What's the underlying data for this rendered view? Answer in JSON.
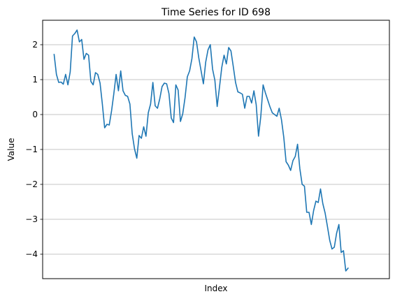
{
  "chart_data": {
    "type": "line",
    "title": "Time Series for ID 698",
    "xlabel": "Index",
    "ylabel": "Value",
    "ylim": [
      -4.7,
      2.7
    ],
    "xlim": [
      -5,
      146
    ],
    "grid": "y",
    "x_ticks_visible": false,
    "yticks": [
      2,
      1,
      0,
      -1,
      -2,
      -3,
      -4
    ],
    "ytick_labels": [
      "2",
      "1",
      "0",
      "−1",
      "−2",
      "−3",
      "−4"
    ],
    "series": [
      {
        "color": "#1f77b4",
        "values": [
          1.72,
          1.15,
          0.92,
          0.93,
          0.87,
          1.15,
          0.85,
          1.22,
          2.25,
          2.32,
          2.42,
          2.08,
          2.15,
          1.58,
          1.75,
          1.7,
          0.95,
          0.85,
          1.2,
          1.15,
          0.9,
          0.3,
          -0.38,
          -0.28,
          -0.3,
          0.1,
          0.6,
          1.15,
          0.68,
          1.25,
          0.68,
          0.55,
          0.52,
          0.3,
          -0.55,
          -0.98,
          -1.25,
          -0.6,
          -0.68,
          -0.35,
          -0.62,
          0.05,
          0.3,
          0.92,
          0.25,
          0.18,
          0.45,
          0.8,
          0.9,
          0.88,
          0.6,
          -0.1,
          -0.23,
          0.85,
          0.7,
          -0.2,
          0.02,
          0.48,
          1.08,
          1.25,
          1.6,
          2.22,
          2.08,
          1.62,
          1.25,
          0.88,
          1.5,
          1.85,
          2.0,
          1.3,
          0.98,
          0.23,
          0.78,
          1.35,
          1.7,
          1.45,
          1.92,
          1.82,
          1.38,
          0.92,
          0.65,
          0.62,
          0.58,
          0.18,
          0.52,
          0.52,
          0.33,
          0.68,
          0.28,
          -0.62,
          -0.05,
          0.85,
          0.62,
          0.42,
          0.22,
          0.05,
          0.0,
          -0.05,
          0.18,
          -0.15,
          -0.65,
          -1.35,
          -1.45,
          -1.6,
          -1.32,
          -1.2,
          -0.85,
          -1.55,
          -2.0,
          -2.05,
          -2.8,
          -2.8,
          -3.15,
          -2.75,
          -2.48,
          -2.52,
          -2.13,
          -2.55,
          -2.82,
          -3.2,
          -3.6,
          -3.85,
          -3.8,
          -3.4,
          -3.15,
          -3.95,
          -3.9,
          -4.48,
          -4.4
        ]
      }
    ]
  }
}
